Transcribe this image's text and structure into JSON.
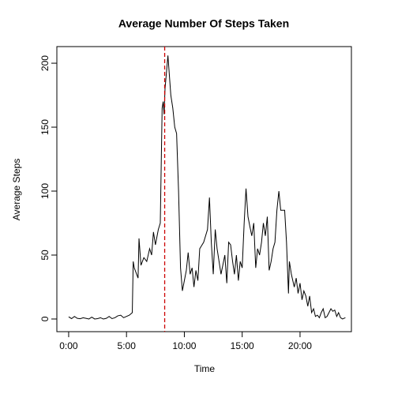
{
  "chart_data": {
    "type": "line",
    "title": "Average Number Of Steps Taken",
    "x_label": "Time",
    "y_label": "Average Steps",
    "x": [
      0,
      0.25,
      0.5,
      0.75,
      1,
      1.25,
      1.5,
      1.75,
      2,
      2.25,
      2.5,
      2.75,
      3,
      3.25,
      3.5,
      3.75,
      4,
      4.25,
      4.5,
      4.75,
      5,
      5.25,
      5.5,
      5.58,
      5.67,
      6,
      6.08,
      6.25,
      6.5,
      6.75,
      7,
      7.17,
      7.33,
      7.5,
      7.75,
      7.92,
      8.08,
      8.17,
      8.25,
      8.33,
      8.58,
      8.67,
      8.83,
      9,
      9.17,
      9.33,
      9.5,
      9.67,
      9.83,
      10,
      10.17,
      10.33,
      10.5,
      10.67,
      10.83,
      11,
      11.17,
      11.33,
      11.67,
      12,
      12.17,
      12.33,
      12.5,
      12.67,
      12.83,
      13,
      13.17,
      13.5,
      13.67,
      13.83,
      14,
      14.17,
      14.33,
      14.5,
      14.67,
      14.83,
      15,
      15.17,
      15.33,
      15.5,
      15.67,
      15.83,
      16,
      16.17,
      16.33,
      16.5,
      16.67,
      16.83,
      17,
      17.17,
      17.33,
      17.5,
      17.67,
      17.83,
      18,
      18.17,
      18.33,
      18.67,
      18.83,
      19,
      19.08,
      19.25,
      19.5,
      19.67,
      19.83,
      20,
      20.17,
      20.33,
      20.5,
      20.67,
      20.83,
      21,
      21.17,
      21.33,
      21.5,
      21.67,
      21.83,
      22,
      22.17,
      22.33,
      22.67,
      22.83,
      23,
      23.17,
      23.33,
      23.5,
      23.67,
      23.92
    ],
    "series": [
      {
        "name": "Average Steps",
        "color": "#000000",
        "values": [
          1.7,
          0.3,
          2,
          0.5,
          0.2,
          1,
          0.5,
          0,
          1.5,
          0,
          0.3,
          1,
          0,
          0.5,
          2,
          0.3,
          1,
          2.5,
          3,
          1,
          2,
          3,
          5,
          45,
          40,
          32,
          63,
          42,
          48,
          45,
          55,
          50,
          68,
          58,
          70,
          75,
          165,
          170,
          160,
          180,
          206,
          195,
          175,
          165,
          150,
          145,
          100,
          40,
          22,
          30,
          38,
          52,
          35,
          40,
          25,
          38,
          30,
          55,
          60,
          70,
          95,
          60,
          35,
          70,
          55,
          45,
          35,
          50,
          28,
          60,
          58,
          45,
          35,
          50,
          30,
          45,
          40,
          75,
          102,
          80,
          72,
          65,
          75,
          40,
          55,
          50,
          60,
          75,
          65,
          80,
          38,
          45,
          55,
          60,
          85,
          100,
          85,
          85,
          60,
          20,
          45,
          35,
          25,
          32,
          20,
          28,
          15,
          22,
          18,
          10,
          18,
          5,
          8,
          2,
          3,
          1,
          5,
          8,
          1,
          2,
          8,
          6,
          7,
          2,
          5,
          1,
          0,
          1
        ]
      }
    ],
    "vline": {
      "x": 8.3,
      "color": "#cc0000"
    },
    "xlim": [
      -1.02,
      24.44
    ],
    "ylim": [
      -9.9,
      213
    ],
    "xticks": [
      {
        "value": 0,
        "label": "0:00"
      },
      {
        "value": 5,
        "label": "5:00"
      },
      {
        "value": 10,
        "label": "10:00"
      },
      {
        "value": 15,
        "label": "15:00"
      },
      {
        "value": 20,
        "label": "20:00"
      }
    ],
    "yticks": [
      0,
      50,
      100,
      150,
      200
    ]
  }
}
